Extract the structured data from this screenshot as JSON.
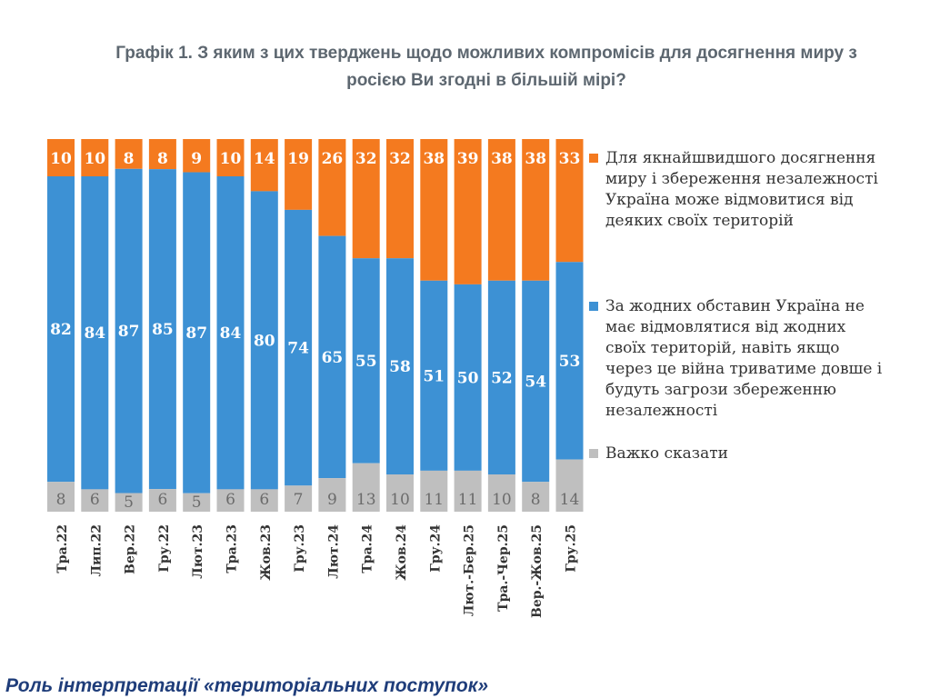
{
  "title_lines": [
    "Графік 1. З яким з цих тверджень щодо можливих компромісів для досягнення миру з",
    "росією Ви згодні в більшій мірі?"
  ],
  "section_heading": "Роль інтерпретації «територіальних поступок»",
  "colors": {
    "concede": "#f47a1f",
    "no_concede": "#3d91d4",
    "hard_to_say": "#bfbfbf",
    "title": "#5d6770",
    "heading": "#1f3d7a"
  },
  "legend": [
    {
      "label_lines": [
        "Для якнайшвидшого досягнення",
        "миру і збереження незалежності",
        "Україна може відмовитися від",
        "деяких своїх територій"
      ],
      "color": "#f47a1f"
    },
    {
      "label_lines": [
        "За жодних обставин Україна не",
        "має відмовлятися від жодних",
        "своїх територій, навіть якщо",
        "через це війна триватиме довше і",
        "будуть загрози збереженню",
        "незалежності"
      ],
      "color": "#3d91d4"
    },
    {
      "label_lines": [
        "Важко сказати"
      ],
      "color": "#bfbfbf"
    }
  ],
  "chart_data": {
    "type": "bar",
    "stacked": true,
    "title": "Графік 1. З яким з цих тверджень щодо можливих компромісів для досягнення миру з росією Ви згодні в більшій мірі?",
    "categories": [
      "Тра.22",
      "Лип.22",
      "Вер.22",
      "Гру.22",
      "Лют.23",
      "Тра.23",
      "Жов.23",
      "Гру.23",
      "Лют.24",
      "Тра.24",
      "Жов.24",
      "Гру.24",
      "Лют.-Бер.25",
      "Тра.-Чер.25",
      "Вер.-Жов.25",
      "Гру.25"
    ],
    "series": [
      {
        "name": "Важко сказати",
        "color": "#bfbfbf",
        "values": [
          8,
          6,
          5,
          6,
          5,
          6,
          6,
          7,
          9,
          13,
          10,
          11,
          11,
          10,
          8,
          14
        ]
      },
      {
        "name": "За жодних обставин Україна не має відмовлятися від жодних своїх територій, навіть якщо через це війна триватиме довше і будуть загрози збереженню незалежності",
        "color": "#3d91d4",
        "values": [
          82,
          84,
          87,
          85,
          87,
          84,
          80,
          74,
          65,
          55,
          58,
          51,
          50,
          52,
          54,
          53
        ]
      },
      {
        "name": "Для якнайшвидшого досягнення миру і збереження незалежності Україна може відмовитися від деяких своїх територій",
        "color": "#f47a1f",
        "values": [
          10,
          10,
          8,
          8,
          9,
          10,
          14,
          19,
          26,
          32,
          32,
          38,
          39,
          38,
          38,
          33
        ]
      }
    ],
    "xlabel": "",
    "ylabel": "",
    "ylim": [
      0,
      100
    ],
    "legend_position": "right"
  }
}
